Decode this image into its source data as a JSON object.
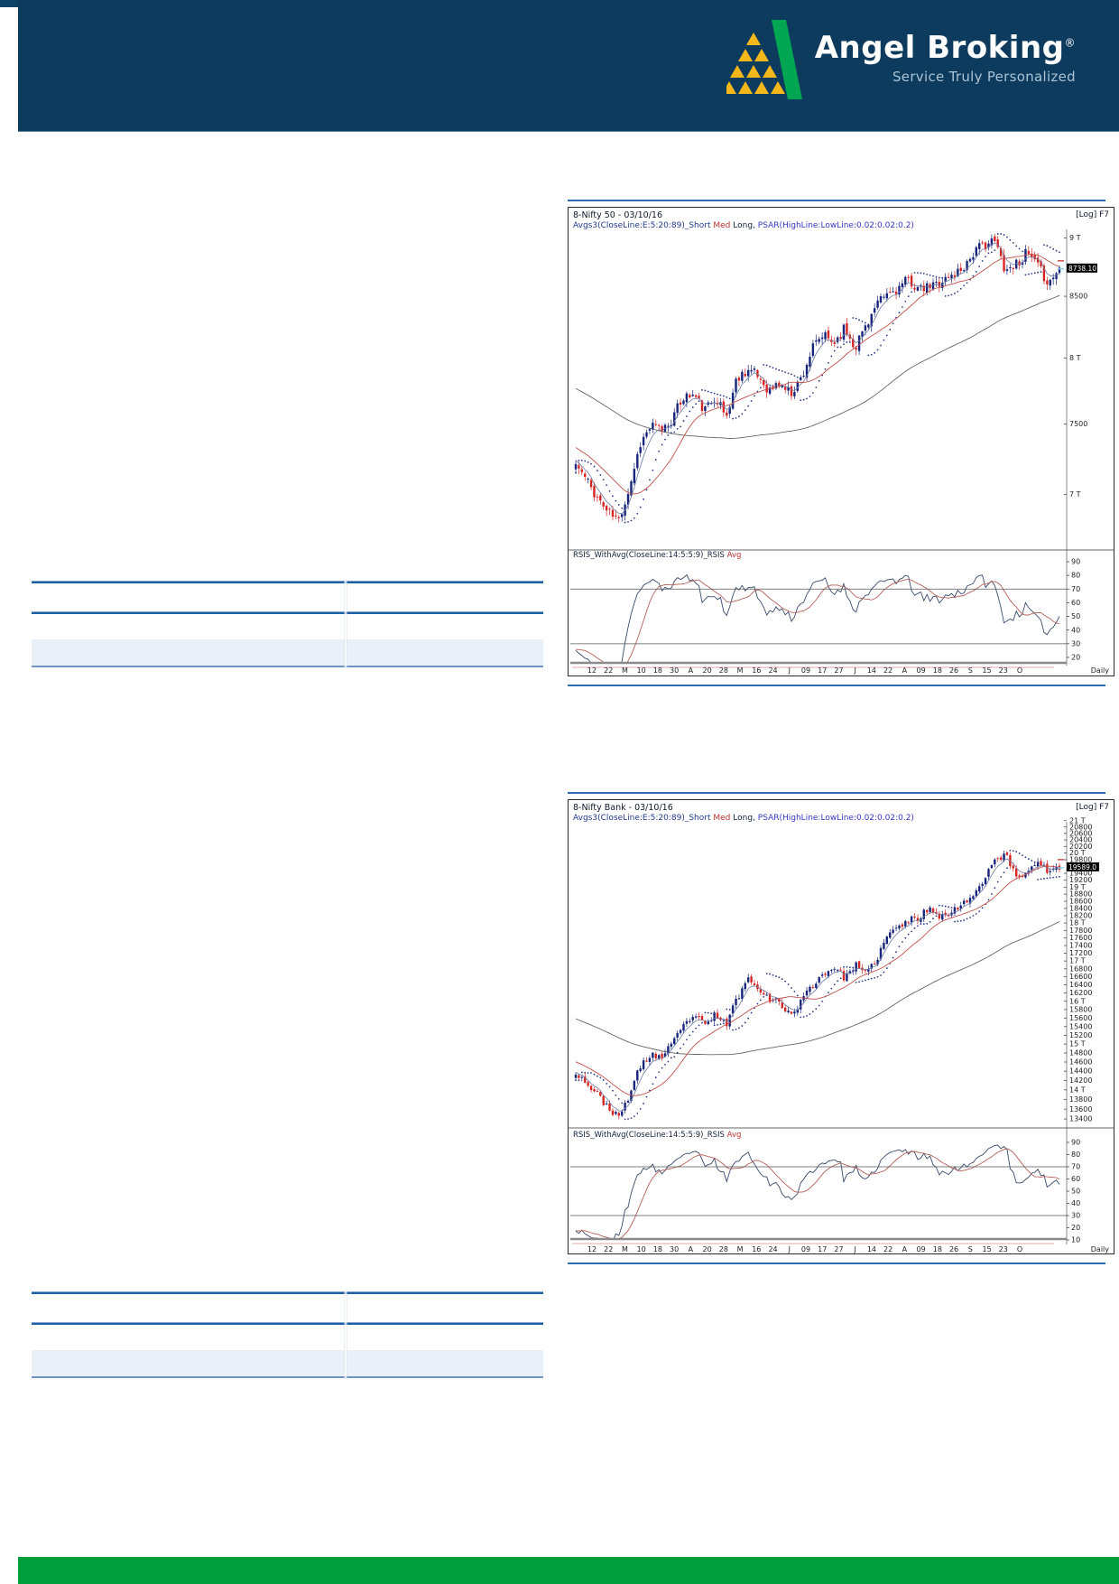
{
  "header": {
    "brand": "Angel Broking",
    "registered_mark": "®",
    "tagline": "Service Truly Personalized",
    "logo_colors": {
      "yellow": "#f5b81c",
      "green": "#00a651"
    },
    "bar_color": "#0d3b5e"
  },
  "footer": {
    "bar_color": "#009e3c"
  },
  "colors": {
    "separator_rule": "#2e6db4",
    "table_line": "#1d5fa6",
    "table_shade": "#e9f0f7",
    "candle_up": "#16257b",
    "candle_up_strong": "#7fd6e8",
    "candle_down": "#d62423",
    "ma_short": "#6b7ba4",
    "ma_medium": "#c2504b",
    "ma_long": "#666666",
    "psar_dots": "#2a3a8c",
    "rsi_line": "#394a6b",
    "rsi_avg": "#b5605a",
    "axis_text": "#222222",
    "price_box_bg": "#000000",
    "price_box_text": "#ffffff"
  },
  "chart_data": [
    {
      "type": "candlestick",
      "title": "8-Nifty 50 - 03/10/16",
      "legend": {
        "avgs": "Avgs3(CloseLine:E:5:20:89)_Short",
        "med": "Med",
        "long": "Long,",
        "psar": "PSAR(HighLine:LowLine:0.02:0.02:0.2)"
      },
      "scale_label": "[Log] F7",
      "last_price_label": "8738.10",
      "last_price": 8738.1,
      "y_axis": [
        {
          "label": "9 T",
          "value": 9000
        },
        {
          "label": "8500",
          "value": 8500
        },
        {
          "label": "8 T",
          "value": 8000
        },
        {
          "label": "7500",
          "value": 7500
        },
        {
          "label": "7 T",
          "value": 7000
        }
      ],
      "rsi_label": "RSIS_WithAvg(CloseLine:14:5:5:9)_RSIS",
      "rsi_avg_label": "Avg",
      "rsi_axis": [
        90,
        80,
        70,
        60,
        50,
        40,
        30,
        20
      ],
      "rsi_ref_lines": [
        70,
        30
      ],
      "x_ticks": [
        "12",
        "22",
        "M",
        "10",
        "18",
        "30",
        "A",
        "20",
        "28",
        "M",
        "16",
        "24",
        "J",
        "09",
        "17",
        "27",
        "J",
        "14",
        "22",
        "A",
        "09",
        "18",
        "26",
        "S",
        "15",
        "23",
        "O"
      ],
      "periodicity": "Daily",
      "close_anchors": [
        7210,
        7100,
        6980,
        6880,
        6825,
        7050,
        7360,
        7485,
        7460,
        7538,
        7704,
        7716,
        7597,
        7713,
        7546,
        7850,
        7915,
        7855,
        7750,
        7805,
        7730,
        7850,
        8070,
        8180,
        8120,
        8240,
        8090,
        8270,
        8420,
        8520,
        8565,
        8640,
        8545,
        8580,
        8630,
        8670,
        8745,
        8865,
        8950,
        8965,
        8720,
        8780,
        8865,
        8745,
        8611,
        8738
      ]
    },
    {
      "type": "candlestick",
      "title": "8-Nifty Bank - 03/10/16",
      "legend": {
        "avgs": "Avgs3(CloseLine:E:5:20:89)_Short",
        "med": "Med",
        "long": "Long,",
        "psar": "PSAR(HighLine:LowLine:0.02:0.02:0.2)"
      },
      "scale_label": "[Log] F7",
      "last_price_label": "19589.0",
      "last_price": 19589,
      "y_axis": [
        {
          "label": "21 T",
          "value": 21000
        },
        {
          "label": "20800",
          "value": 20800
        },
        {
          "label": "20600",
          "value": 20600
        },
        {
          "label": "20400",
          "value": 20400
        },
        {
          "label": "20200",
          "value": 20200
        },
        {
          "label": "20 T",
          "value": 20000
        },
        {
          "label": "19800",
          "value": 19800
        },
        {
          "label": "19400",
          "value": 19400
        },
        {
          "label": "19200",
          "value": 19200
        },
        {
          "label": "19 T",
          "value": 19000
        },
        {
          "label": "18800",
          "value": 18800
        },
        {
          "label": "18600",
          "value": 18600
        },
        {
          "label": "18400",
          "value": 18400
        },
        {
          "label": "18200",
          "value": 18200
        },
        {
          "label": "18 T",
          "value": 18000
        },
        {
          "label": "17800",
          "value": 17800
        },
        {
          "label": "17600",
          "value": 17600
        },
        {
          "label": "17400",
          "value": 17400
        },
        {
          "label": "17200",
          "value": 17200
        },
        {
          "label": "17 T",
          "value": 17000
        },
        {
          "label": "16800",
          "value": 16800
        },
        {
          "label": "16600",
          "value": 16600
        },
        {
          "label": "16400",
          "value": 16400
        },
        {
          "label": "16200",
          "value": 16200
        },
        {
          "label": "16 T",
          "value": 16000
        },
        {
          "label": "15800",
          "value": 15800
        },
        {
          "label": "15600",
          "value": 15600
        },
        {
          "label": "15400",
          "value": 15400
        },
        {
          "label": "15200",
          "value": 15200
        },
        {
          "label": "15 T",
          "value": 15000
        },
        {
          "label": "14800",
          "value": 14800
        },
        {
          "label": "14600",
          "value": 14600
        },
        {
          "label": "14400",
          "value": 14400
        },
        {
          "label": "14200",
          "value": 14200
        },
        {
          "label": "14 T",
          "value": 14000
        },
        {
          "label": "13800",
          "value": 13800
        },
        {
          "label": "13600",
          "value": 13600
        },
        {
          "label": "13400",
          "value": 13400
        }
      ],
      "rsi_label": "RSIS_WithAvg(CloseLine:14:5:5:9)_RSIS",
      "rsi_avg_label": "Avg",
      "rsi_axis": [
        90,
        80,
        70,
        60,
        50,
        40,
        30,
        20,
        10
      ],
      "rsi_ref_lines": [
        70,
        30
      ],
      "x_ticks": [
        "12",
        "22",
        "M",
        "10",
        "18",
        "30",
        "A",
        "20",
        "28",
        "M",
        "16",
        "24",
        "J",
        "09",
        "17",
        "27",
        "J",
        "14",
        "22",
        "A",
        "09",
        "18",
        "26",
        "S",
        "15",
        "23",
        "O"
      ],
      "periodicity": "Daily",
      "close_anchors": [
        14390,
        14150,
        13900,
        13650,
        13407,
        13900,
        14500,
        14770,
        14700,
        15000,
        15400,
        15690,
        15400,
        15690,
        15440,
        16070,
        16550,
        16360,
        16060,
        15950,
        15670,
        16000,
        16400,
        16650,
        16870,
        16580,
        16900,
        16650,
        17060,
        17650,
        17900,
        18060,
        18170,
        18450,
        18170,
        18270,
        18590,
        18750,
        19280,
        19820,
        19930,
        19290,
        19430,
        19820,
        19390,
        19589
      ]
    }
  ]
}
